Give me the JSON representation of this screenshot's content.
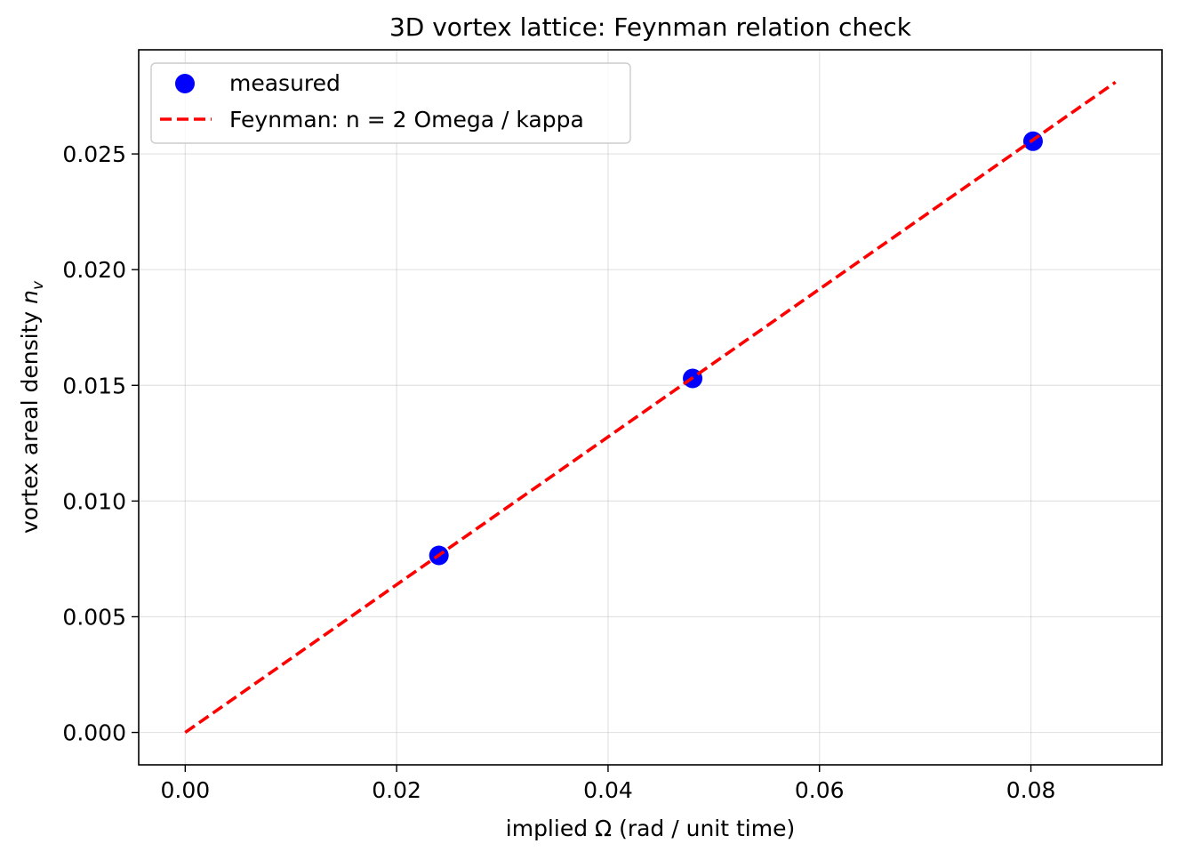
{
  "chart_data": {
    "type": "scatter",
    "title": "3D vortex lattice: Feynman relation check",
    "xlabel": "implied Ω (rad / unit time)",
    "ylabel_text": "vortex areal density ",
    "ylabel_symbol": "n",
    "ylabel_subscript": "v",
    "xlim": [
      -0.0044,
      0.0924
    ],
    "ylim": [
      -0.0014,
      0.0295
    ],
    "x_ticks": [
      0.0,
      0.02,
      0.04,
      0.06,
      0.08
    ],
    "x_tick_labels": [
      "0.00",
      "0.02",
      "0.04",
      "0.06",
      "0.08"
    ],
    "y_ticks": [
      0.0,
      0.005,
      0.01,
      0.015,
      0.02,
      0.025
    ],
    "y_tick_labels": [
      "0.000",
      "0.005",
      "0.010",
      "0.015",
      "0.020",
      "0.025"
    ],
    "grid": true,
    "legend_position": "upper-left",
    "series": [
      {
        "name": "measured",
        "kind": "scatter",
        "color": "#0000ff",
        "x": [
          0.024,
          0.048,
          0.0802
        ],
        "y": [
          0.00765,
          0.0153,
          0.02555
        ]
      },
      {
        "name": "Feynman: n = 2 Omega / kappa",
        "kind": "line",
        "style": "dashed",
        "color": "#ff0000",
        "x": [
          0.0,
          0.088
        ],
        "y": [
          0.0,
          0.0281
        ]
      }
    ]
  }
}
